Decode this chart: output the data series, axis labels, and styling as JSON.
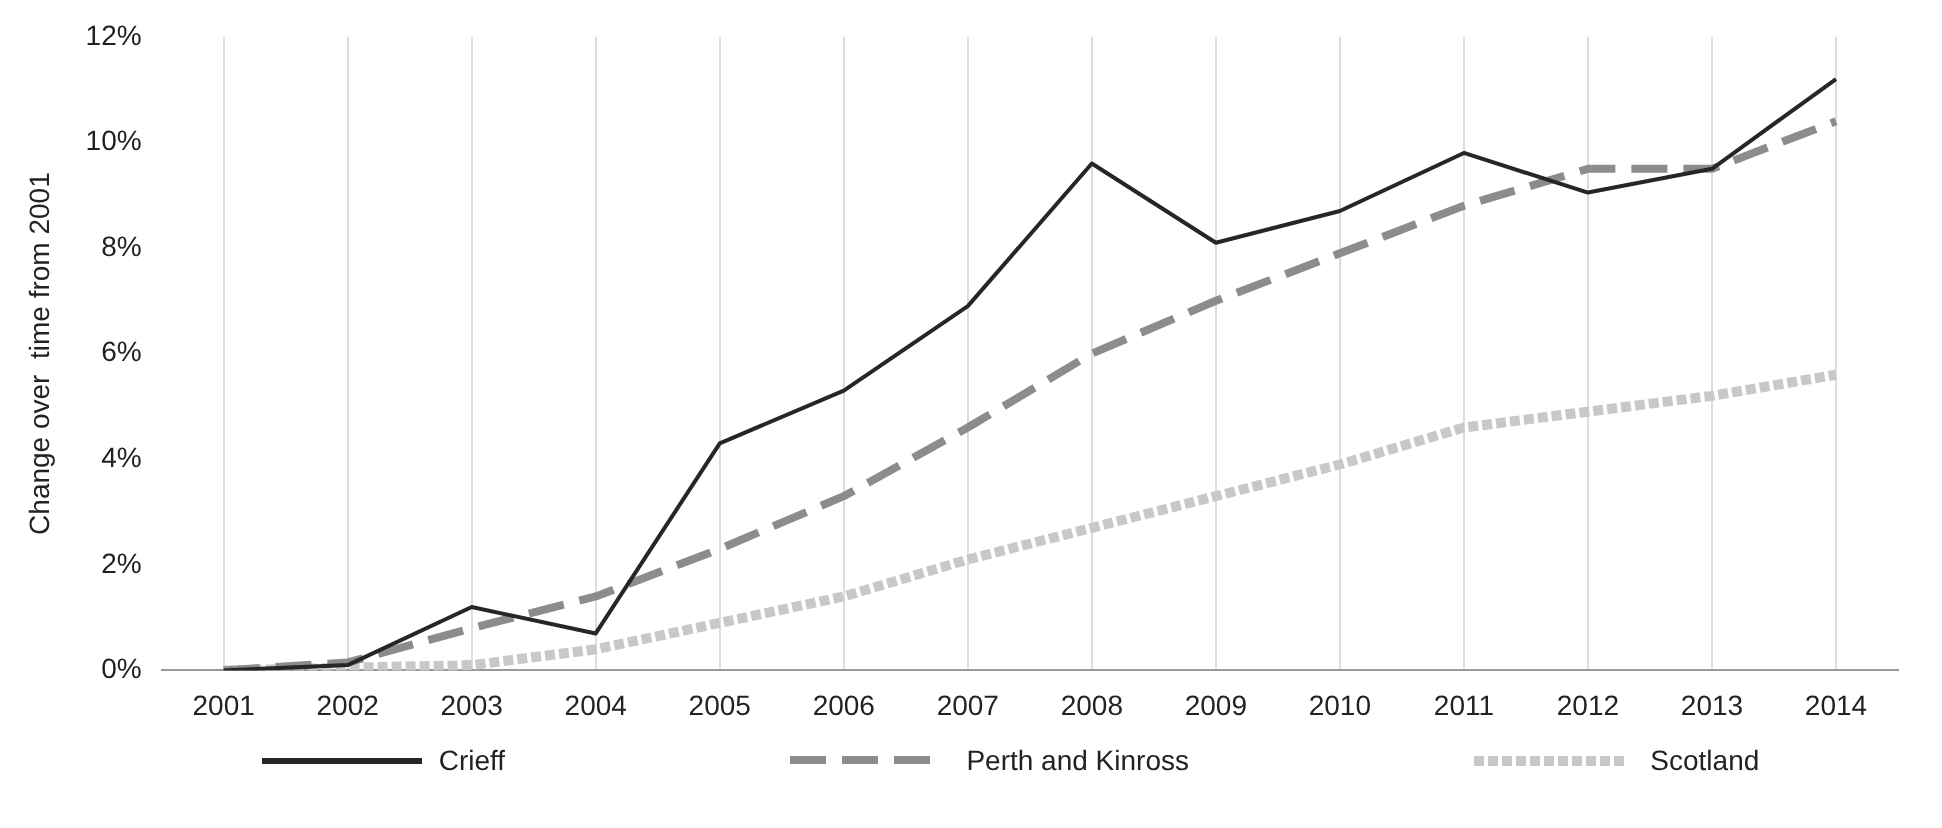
{
  "chart_data": {
    "type": "line",
    "ylabel": "Change over  time from 2001",
    "categories": [
      "2001",
      "2002",
      "2003",
      "2004",
      "2005",
      "2006",
      "2007",
      "2008",
      "2009",
      "2010",
      "2011",
      "2012",
      "2013",
      "2014"
    ],
    "series": [
      {
        "name": "Crieff",
        "color": "#262626",
        "line_style": "solid",
        "values": [
          0,
          0.1,
          1.2,
          0.7,
          4.3,
          5.3,
          6.9,
          9.6,
          8.1,
          8.7,
          9.8,
          9.05,
          9.5,
          11.2
        ]
      },
      {
        "name": "Perth and Kinross",
        "color": "#8c8c8c",
        "line_style": "dashed",
        "values": [
          0,
          0.15,
          0.8,
          1.4,
          2.3,
          3.3,
          4.6,
          6.0,
          7.0,
          7.9,
          8.8,
          9.5,
          9.5,
          10.4
        ]
      },
      {
        "name": "Scotland",
        "color": "#c8c8c8",
        "line_style": "dotted",
        "values": [
          0,
          0.05,
          0.1,
          0.4,
          0.9,
          1.4,
          2.1,
          2.7,
          3.3,
          3.9,
          4.6,
          4.9,
          5.2,
          5.6
        ]
      }
    ],
    "ylim": [
      0,
      12
    ],
    "yticks": [
      {
        "value": 0,
        "label": "0%"
      },
      {
        "value": 2,
        "label": "2%"
      },
      {
        "value": 4,
        "label": "4%"
      },
      {
        "value": 6,
        "label": "6%"
      },
      {
        "value": 8,
        "label": "8%"
      },
      {
        "value": 10,
        "label": "10%"
      },
      {
        "value": 12,
        "label": "12%"
      }
    ],
    "grid": "x",
    "legend": "bottom",
    "marker": "none"
  }
}
